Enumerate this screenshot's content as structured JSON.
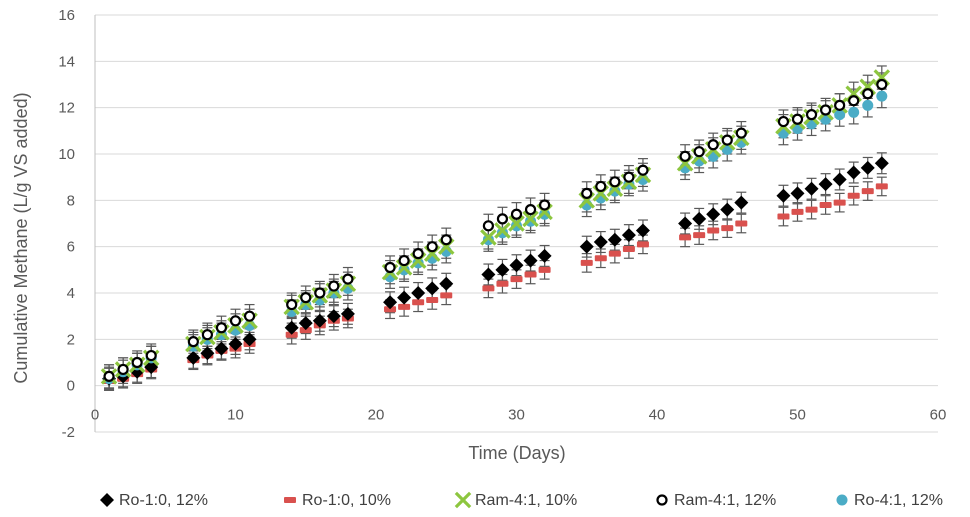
{
  "chart_data": {
    "type": "scatter",
    "title": "",
    "xlabel": "Time (Days)",
    "ylabel": "Cumulative Methane (L/g VS added)",
    "xlim": [
      0,
      60
    ],
    "ylim": [
      -2,
      16
    ],
    "x_ticks": [
      0,
      10,
      20,
      30,
      40,
      50,
      60
    ],
    "y_ticks": [
      -2,
      0,
      2,
      4,
      6,
      8,
      10,
      12,
      14,
      16
    ],
    "grid": "horizontal",
    "legend_position": "bottom",
    "x": [
      1,
      2,
      3,
      4,
      7,
      8,
      9,
      10,
      11,
      14,
      15,
      16,
      17,
      18,
      21,
      22,
      23,
      24,
      25,
      28,
      29,
      30,
      31,
      32,
      35,
      36,
      37,
      38,
      39,
      42,
      43,
      44,
      45,
      46,
      49,
      50,
      51,
      52,
      53,
      54,
      55,
      56
    ],
    "series": [
      {
        "name": "Ro-1:0, 12%",
        "marker": "diamond",
        "color": "#000000",
        "values": [
          0.3,
          0.4,
          0.6,
          0.8,
          1.2,
          1.4,
          1.6,
          1.8,
          2.0,
          2.5,
          2.7,
          2.8,
          3.0,
          3.1,
          3.6,
          3.8,
          4.0,
          4.2,
          4.4,
          4.8,
          5.0,
          5.2,
          5.4,
          5.6,
          6.0,
          6.2,
          6.3,
          6.5,
          6.7,
          7.0,
          7.2,
          7.4,
          7.6,
          7.9,
          8.2,
          8.3,
          8.5,
          8.7,
          8.9,
          9.2,
          9.4,
          9.6
        ],
        "error": 0.45
      },
      {
        "name": "Ro-1:0, 10%",
        "marker": "dash",
        "color": "#d9514e",
        "values": [
          0.2,
          0.3,
          0.5,
          0.7,
          1.1,
          1.3,
          1.5,
          1.6,
          1.8,
          2.2,
          2.4,
          2.6,
          2.8,
          2.9,
          3.3,
          3.4,
          3.6,
          3.7,
          3.9,
          4.2,
          4.4,
          4.6,
          4.8,
          5.0,
          5.3,
          5.5,
          5.7,
          5.9,
          6.1,
          6.4,
          6.5,
          6.7,
          6.8,
          7.0,
          7.3,
          7.5,
          7.6,
          7.8,
          7.9,
          8.2,
          8.4,
          8.6
        ],
        "error": 0.4
      },
      {
        "name": "Ram-4:1, 10%",
        "marker": "x",
        "color": "#8dc63f",
        "values": [
          0.4,
          0.7,
          0.9,
          1.2,
          1.8,
          2.1,
          2.3,
          2.6,
          2.8,
          3.4,
          3.6,
          3.9,
          4.1,
          4.4,
          4.9,
          5.1,
          5.4,
          5.7,
          6.0,
          6.4,
          6.7,
          7.0,
          7.2,
          7.5,
          8.0,
          8.3,
          8.5,
          8.8,
          9.1,
          9.6,
          9.9,
          10.2,
          10.5,
          10.7,
          11.2,
          11.4,
          11.6,
          11.8,
          12.1,
          12.6,
          12.9,
          13.3
        ],
        "error": 0.5
      },
      {
        "name": "Ram-4:1, 12%",
        "marker": "circle-open",
        "color": "#000000",
        "values": [
          0.4,
          0.7,
          1.0,
          1.3,
          1.9,
          2.2,
          2.5,
          2.8,
          3.0,
          3.5,
          3.8,
          4.0,
          4.3,
          4.6,
          5.1,
          5.4,
          5.7,
          6.0,
          6.3,
          6.9,
          7.2,
          7.4,
          7.6,
          7.8,
          8.3,
          8.6,
          8.8,
          9.0,
          9.3,
          9.9,
          10.1,
          10.4,
          10.6,
          10.9,
          11.4,
          11.5,
          11.7,
          11.9,
          12.1,
          12.3,
          12.6,
          13.0
        ],
        "error": 0.5
      },
      {
        "name": "Ro-4:1, 12%",
        "marker": "circle",
        "color": "#4bacc6",
        "values": [
          0.3,
          0.6,
          0.9,
          1.2,
          1.7,
          2.0,
          2.2,
          2.4,
          2.6,
          3.2,
          3.5,
          3.7,
          4.0,
          4.2,
          4.7,
          5.0,
          5.3,
          5.5,
          5.8,
          6.3,
          6.6,
          6.9,
          7.1,
          7.4,
          7.8,
          8.1,
          8.4,
          8.7,
          8.9,
          9.4,
          9.7,
          9.9,
          10.2,
          10.5,
          10.9,
          11.1,
          11.3,
          11.5,
          11.7,
          11.8,
          12.1,
          12.5
        ],
        "error": 0.5
      }
    ]
  }
}
